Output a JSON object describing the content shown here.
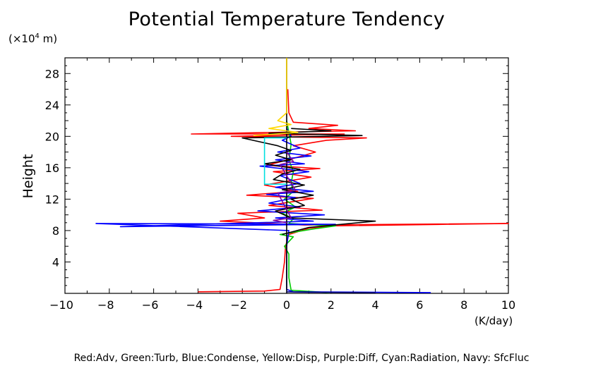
{
  "page": {
    "title": "Potential Temperature Tendency",
    "y_unit_prefix": "(×10",
    "y_unit_exp": "4",
    "y_unit_suffix": " m)",
    "ylabel": "Height",
    "xlabel": "(K/day)",
    "legend_text": "Red:Adv, Green:Turb, Blue:Condense, Yellow:Disp, Purple:Diff, Cyan:Radiation, Navy: SfcFluc"
  },
  "chart_data": {
    "type": "line",
    "title": "Potential Temperature Tendency",
    "xlabel": "(K/day)",
    "ylabel": "Height",
    "y_unit": "(×10^4 m)",
    "xlim": [
      -10,
      10
    ],
    "ylim": [
      0,
      30
    ],
    "x_ticks": [
      -10,
      -8,
      -6,
      -4,
      -2,
      0,
      2,
      4,
      6,
      8,
      10
    ],
    "y_ticks": [
      4,
      8,
      12,
      16,
      20,
      24,
      28
    ],
    "grid": false,
    "series": [
      {
        "name": "Red:Adv",
        "color": "#ff0000",
        "points": [
          [
            -4,
            0.2
          ],
          [
            -1,
            0.3
          ],
          [
            -0.3,
            0.5
          ],
          [
            -0.2,
            2
          ],
          [
            -0.1,
            4
          ],
          [
            -0.05,
            6
          ],
          [
            0.1,
            7.5
          ],
          [
            1,
            8.3
          ],
          [
            2,
            8.6
          ],
          [
            10,
            8.9
          ],
          [
            0.8,
            8.7
          ],
          [
            -3,
            9.2
          ],
          [
            -1,
            9.6
          ],
          [
            -2.2,
            10.2
          ],
          [
            1.6,
            10.6
          ],
          [
            -0.8,
            11.2
          ],
          [
            1.2,
            12.1
          ],
          [
            -1.8,
            12.5
          ],
          [
            0.5,
            13
          ],
          [
            -1,
            13.8
          ],
          [
            1.1,
            14.8
          ],
          [
            -0.6,
            15.5
          ],
          [
            1.5,
            15.9
          ],
          [
            -0.9,
            16.3
          ],
          [
            0.7,
            17.5
          ],
          [
            1.3,
            18
          ],
          [
            0.3,
            18.8
          ],
          [
            1.8,
            19.5
          ],
          [
            3.6,
            19.8
          ],
          [
            -2.5,
            20
          ],
          [
            2.6,
            20.3
          ],
          [
            -4.3,
            20.3
          ],
          [
            3.1,
            20.7
          ],
          [
            1,
            21
          ],
          [
            2.3,
            21.4
          ],
          [
            0.3,
            21.8
          ],
          [
            0.1,
            23
          ],
          [
            0.05,
            26
          ]
        ]
      },
      {
        "name": "Green:Turb",
        "color": "#00cc00",
        "points": [
          [
            1.9,
            0.1
          ],
          [
            0.2,
            0.4
          ],
          [
            0.1,
            2
          ],
          [
            0.1,
            5
          ],
          [
            -0.1,
            6
          ],
          [
            0.3,
            7.2
          ],
          [
            -0.3,
            7.5
          ],
          [
            1.2,
            8.2
          ],
          [
            2.2,
            8.6
          ],
          [
            0.1,
            8.9
          ],
          [
            0.3,
            9.5
          ],
          [
            -0.2,
            10.2
          ],
          [
            0.4,
            11
          ],
          [
            -0.1,
            12
          ],
          [
            0.3,
            13
          ],
          [
            0.2,
            14
          ],
          [
            0.3,
            15.5
          ],
          [
            0.1,
            17
          ],
          [
            0.2,
            19
          ],
          [
            0.1,
            20.5
          ],
          [
            0,
            22
          ]
        ]
      },
      {
        "name": "Blue:Condense",
        "color": "#0000ff",
        "points": [
          [
            6.5,
            0.1
          ],
          [
            0.3,
            0.2
          ],
          [
            0,
            0.5
          ],
          [
            0,
            6
          ],
          [
            0.1,
            8
          ],
          [
            -8.6,
            8.9
          ],
          [
            2.2,
            8.8
          ],
          [
            -7.5,
            8.5
          ],
          [
            1.2,
            9.2
          ],
          [
            -0.5,
            9.6
          ],
          [
            1.7,
            10
          ],
          [
            -1.3,
            10.5
          ],
          [
            0.6,
            11
          ],
          [
            -0.8,
            11.5
          ],
          [
            0.4,
            12.2
          ],
          [
            -0.9,
            12.6
          ],
          [
            1.2,
            13
          ],
          [
            -0.5,
            13.5
          ],
          [
            0.6,
            14
          ],
          [
            -0.3,
            15
          ],
          [
            1,
            15.5
          ],
          [
            -1.2,
            16.2
          ],
          [
            0.8,
            16.5
          ],
          [
            -0.5,
            17
          ],
          [
            1.1,
            17.5
          ],
          [
            -0.4,
            18
          ],
          [
            0.6,
            18.5
          ],
          [
            -0.2,
            19.5
          ],
          [
            0.2,
            20
          ],
          [
            0,
            21
          ]
        ]
      },
      {
        "name": "Black:Total",
        "color": "#000000",
        "points": [
          [
            0,
            0
          ],
          [
            0,
            30
          ]
        ]
      },
      {
        "name": "Black:Profile",
        "color": "#000000",
        "points": [
          [
            -0.2,
            7.5
          ],
          [
            1,
            8.4
          ],
          [
            4,
            9.2
          ],
          [
            0.2,
            9.6
          ],
          [
            -0.5,
            10.5
          ],
          [
            0.8,
            11.2
          ],
          [
            0.2,
            12
          ],
          [
            1.2,
            12.5
          ],
          [
            -0.2,
            13.2
          ],
          [
            0.8,
            13.8
          ],
          [
            -0.6,
            14.5
          ],
          [
            -0.2,
            15.2
          ],
          [
            0.6,
            15.8
          ],
          [
            -1,
            16.5
          ],
          [
            0.2,
            17
          ],
          [
            -0.5,
            17.6
          ],
          [
            0.2,
            18.2
          ],
          [
            -0.4,
            18.8
          ],
          [
            -2,
            19.8
          ],
          [
            3.4,
            20.1
          ],
          [
            -0.8,
            20.4
          ],
          [
            2,
            20.7
          ],
          [
            0.2,
            21
          ]
        ]
      },
      {
        "name": "Yellow:Disp",
        "color": "#ffd800",
        "points": [
          [
            -1.5,
            20.1
          ],
          [
            0.5,
            20.5
          ],
          [
            -0.8,
            21
          ],
          [
            0.2,
            21.5
          ],
          [
            -0.4,
            22
          ],
          [
            0,
            23
          ],
          [
            0,
            30
          ]
        ]
      },
      {
        "name": "Cyan:Radiation",
        "color": "#00e0e0",
        "points": [
          [
            0,
            13.9
          ],
          [
            -1,
            13.9
          ],
          [
            -1,
            19.8
          ],
          [
            0,
            19.8
          ]
        ]
      },
      {
        "name": "Purple:Diff",
        "color": "#8000a0",
        "points": [
          [
            0,
            9
          ],
          [
            -0.6,
            9.3
          ],
          [
            0.2,
            9.6
          ],
          [
            -0.4,
            12.8
          ],
          [
            0.4,
            13.1
          ],
          [
            -0.3,
            16.4
          ],
          [
            0.3,
            16.8
          ],
          [
            0,
            18
          ]
        ]
      },
      {
        "name": "Navy: SfcFluc",
        "color": "#000080",
        "points": [
          [
            4,
            0.1
          ],
          [
            1,
            0.15
          ],
          [
            0,
            0.2
          ]
        ]
      }
    ]
  }
}
